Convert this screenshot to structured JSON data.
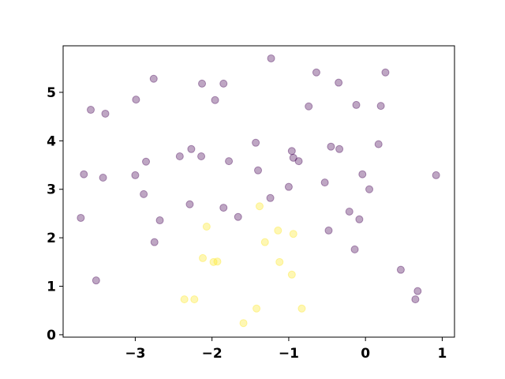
{
  "chart_data": {
    "type": "scatter",
    "series": [
      {
        "color": "#440154",
        "x": [
          -1.23,
          -0.64,
          0.26,
          -2.76,
          -2.13,
          -1.85,
          -0.35,
          -2.99,
          -1.96,
          -0.74,
          -0.12,
          0.2,
          -3.58,
          -3.39,
          -1.43,
          -0.45,
          0.17,
          -2.27,
          -0.96,
          -0.34,
          -2.42,
          -2.14,
          -0.94,
          -0.87,
          -2.86,
          -1.78,
          -1.4,
          -0.53,
          -3.67,
          -3.42,
          -3.0,
          -0.04,
          0.92,
          0.05,
          -1.0,
          -2.89,
          -1.24,
          -2.29,
          -0.21,
          -1.85,
          -1.66,
          -0.08,
          -3.71,
          -2.68,
          -0.48,
          -2.75,
          -0.14,
          0.46,
          -3.51,
          0.68,
          0.65
        ],
        "values": [
          5.7,
          5.41,
          5.41,
          5.28,
          5.18,
          5.18,
          5.2,
          4.85,
          4.84,
          4.71,
          4.74,
          4.72,
          4.64,
          4.56,
          3.96,
          3.88,
          3.93,
          3.83,
          3.79,
          3.83,
          3.68,
          3.68,
          3.65,
          3.58,
          3.57,
          3.58,
          3.39,
          3.14,
          3.31,
          3.24,
          3.29,
          3.31,
          3.29,
          3.0,
          3.05,
          2.9,
          2.82,
          2.69,
          2.54,
          2.62,
          2.43,
          2.38,
          2.41,
          2.36,
          2.15,
          1.91,
          1.76,
          1.34,
          1.12,
          0.9,
          0.73
        ]
      },
      {
        "color": "#fde725",
        "x": [
          -1.38,
          -2.07,
          -1.14,
          -0.94,
          -1.31,
          -2.12,
          -1.98,
          -1.93,
          -1.12,
          -0.96,
          -2.36,
          -2.23,
          -1.42,
          -0.83,
          -1.59
        ],
        "values": [
          2.65,
          2.23,
          2.15,
          2.08,
          1.91,
          1.58,
          1.5,
          1.51,
          1.5,
          1.24,
          0.73,
          0.73,
          0.54,
          0.54,
          0.24
        ]
      }
    ],
    "xlim": [
      -3.94,
      1.16
    ],
    "ylim": [
      -0.05,
      5.96
    ],
    "xticks": [
      {
        "value": -3,
        "label": "−3"
      },
      {
        "value": -2,
        "label": "−2"
      },
      {
        "value": -1,
        "label": "−1"
      },
      0,
      1
    ],
    "yticks": [
      0,
      1,
      2,
      3,
      4,
      5
    ]
  }
}
